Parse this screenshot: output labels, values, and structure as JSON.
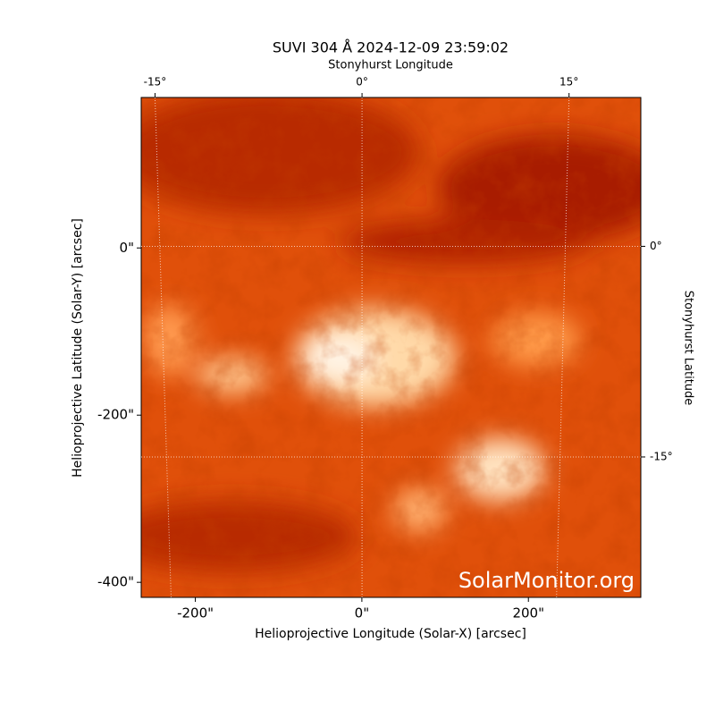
{
  "chart_data": {
    "type": "image",
    "title": "SUVI 304 Å 2024-12-09 23:59:02",
    "xlabel": "Helioprojective Longitude (Solar-X) [arcsec]",
    "ylabel": "Helioprojective Latitude (Solar-Y) [arcsec]",
    "x2label": "Stonyhurst Longitude",
    "y2label": "Stonyhurst Latitude",
    "watermark": "SolarMonitor.org",
    "xlim": [
      -265,
      335
    ],
    "ylim": [
      -418,
      180
    ],
    "xticks": [
      {
        "value": -200,
        "label": "-200\""
      },
      {
        "value": 0,
        "label": "0\""
      },
      {
        "value": 200,
        "label": "200\""
      }
    ],
    "yticks": [
      {
        "value": -400,
        "label": "-400\""
      },
      {
        "value": -200,
        "label": "-200\""
      },
      {
        "value": 0,
        "label": "0\""
      }
    ],
    "x2lim": [
      -16,
      20.2
    ],
    "x2ticks": [
      {
        "value": -15,
        "label": "-15°"
      },
      {
        "value": 0,
        "label": "0°"
      },
      {
        "value": 15,
        "label": "15°"
      }
    ],
    "y2lim": [
      -25,
      10.6
    ],
    "y2ticks": [
      {
        "value": -15,
        "label": "-15°"
      },
      {
        "value": 0,
        "label": "0°"
      }
    ],
    "grid": true
  }
}
